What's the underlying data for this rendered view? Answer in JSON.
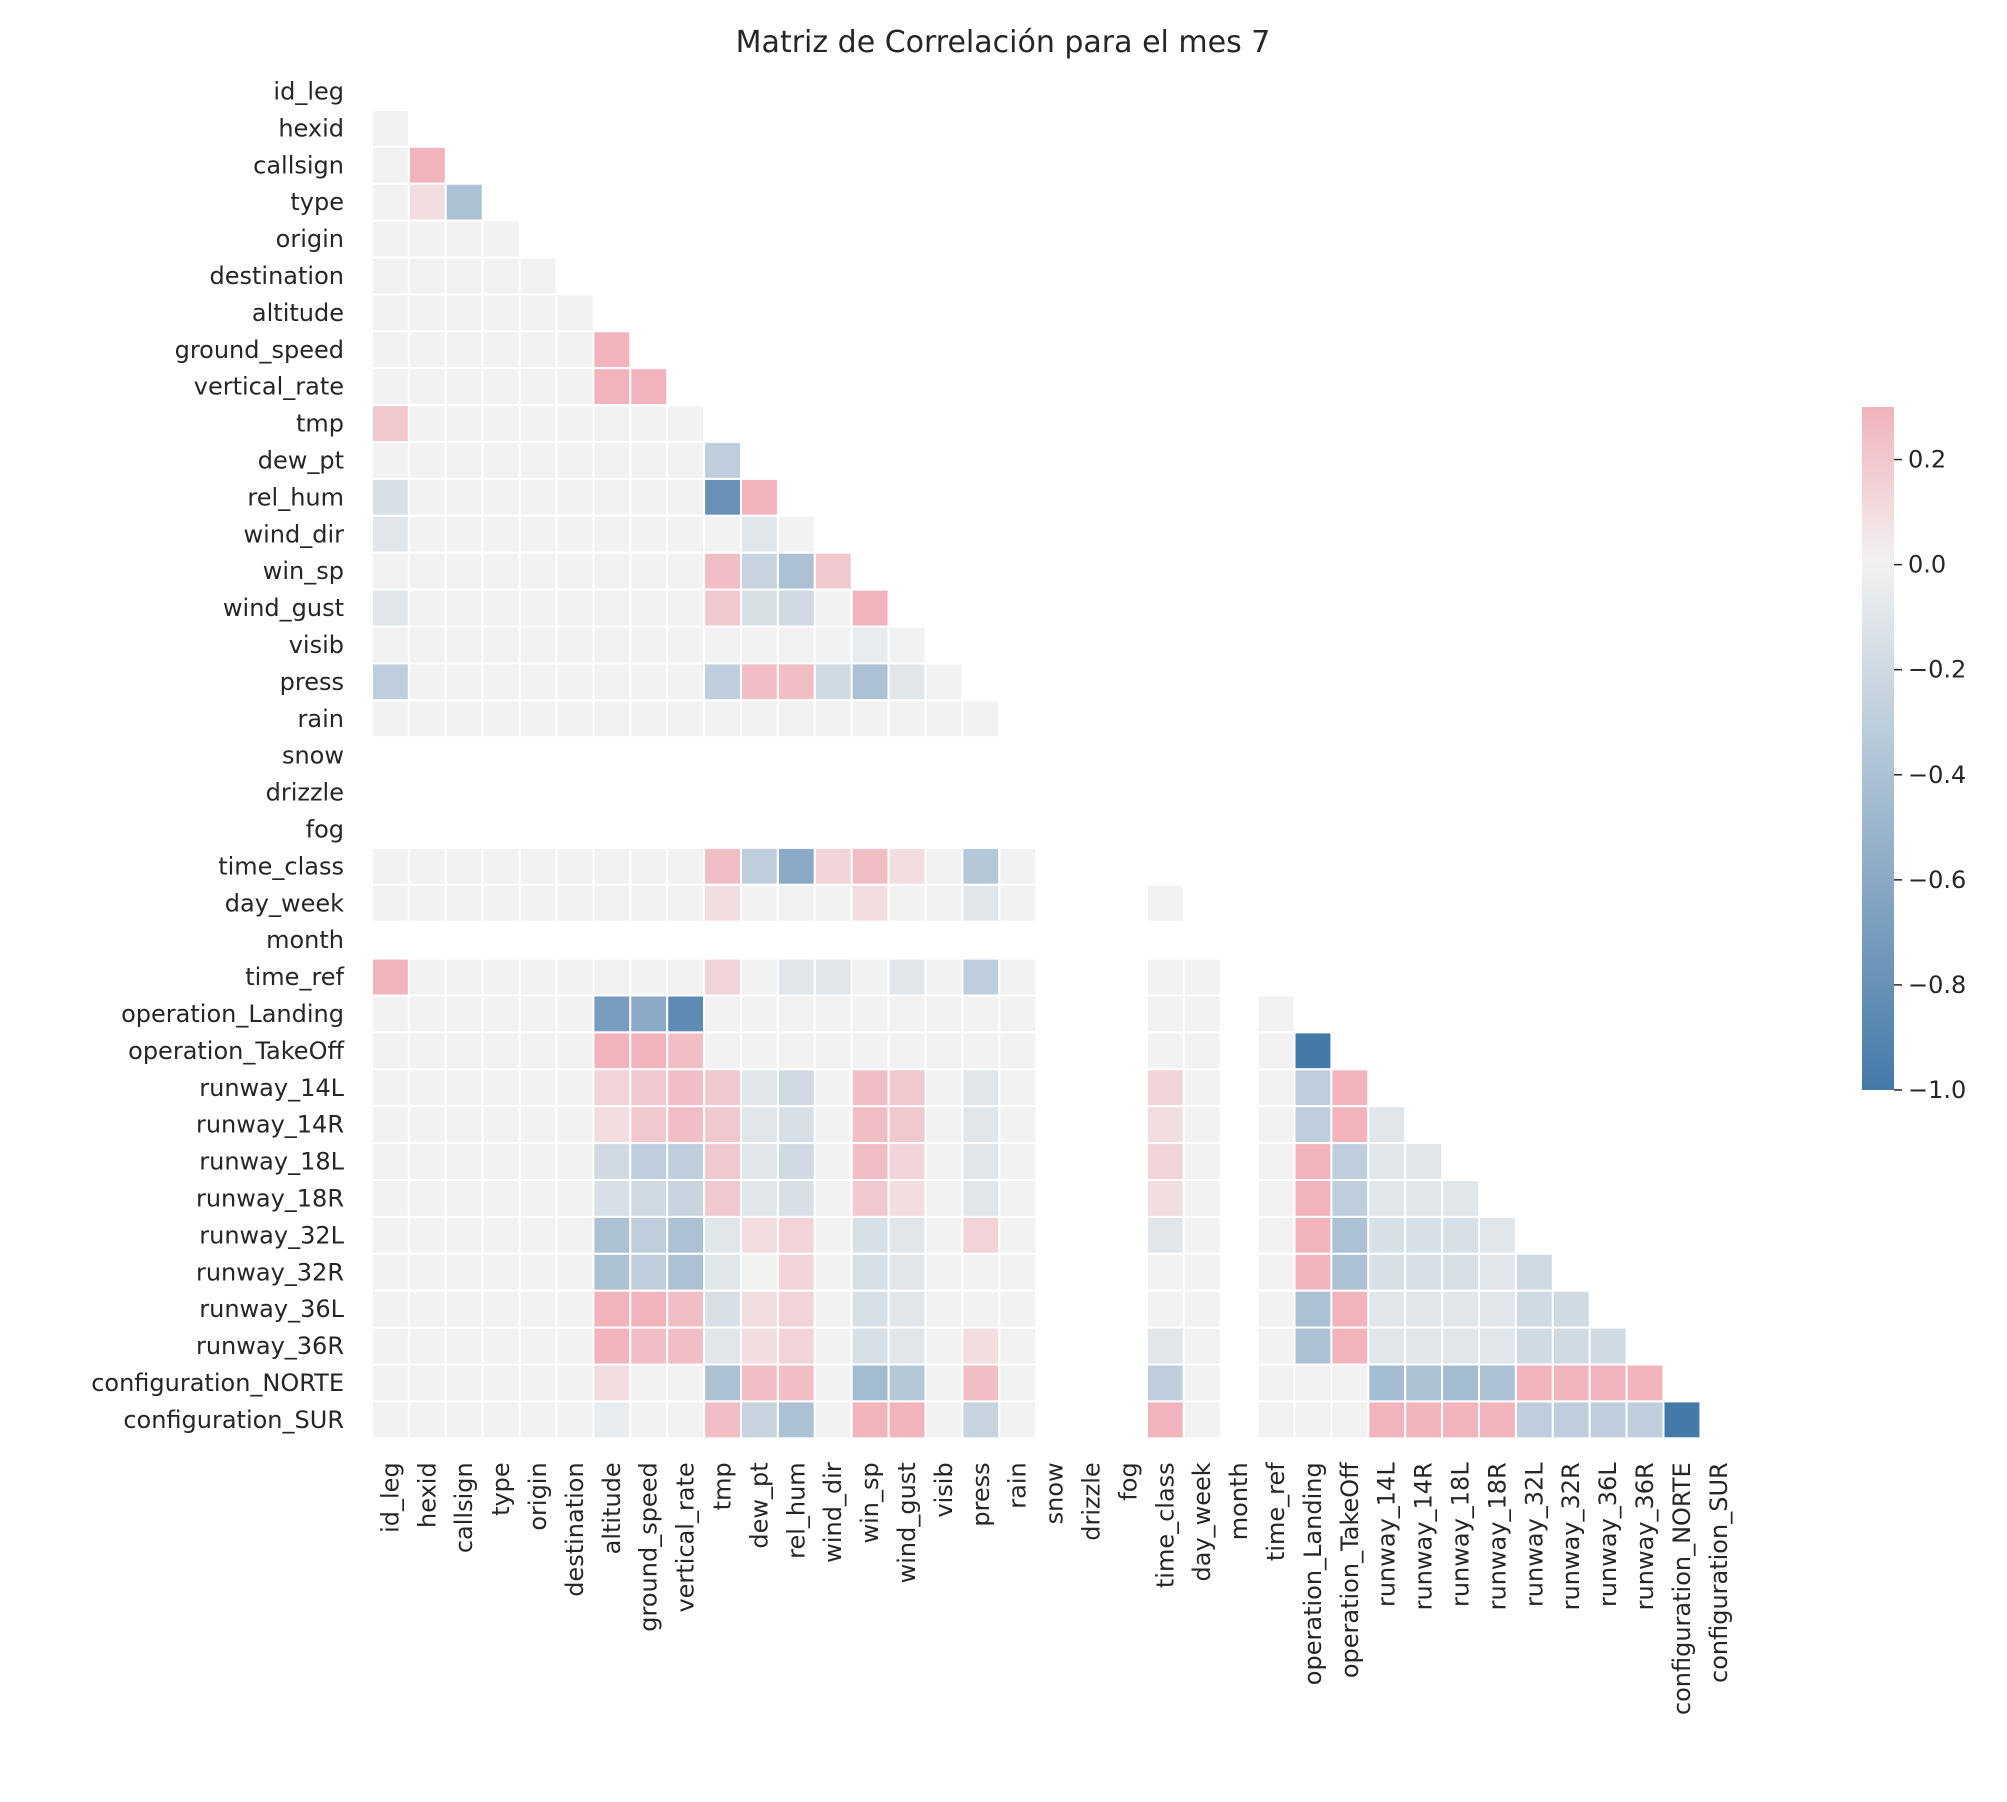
{
  "chart_data": {
    "type": "heatmap",
    "title": "Matriz de Correlación para el mes 7",
    "variables": [
      "id_leg",
      "hexid",
      "callsign",
      "type",
      "origin",
      "destination",
      "altitude",
      "ground_speed",
      "vertical_rate",
      "tmp",
      "dew_pt",
      "rel_hum",
      "wind_dir",
      "win_sp",
      "wind_gust",
      "visib",
      "press",
      "rain",
      "snow",
      "drizzle",
      "fog",
      "time_class",
      "day_week",
      "month",
      "time_ref",
      "operation_Landing",
      "operation_TakeOff",
      "runway_14L",
      "runway_14R",
      "runway_18L",
      "runway_18R",
      "runway_32L",
      "runway_32R",
      "runway_36L",
      "runway_36R",
      "configuration_NORTE",
      "configuration_SUR"
    ],
    "mask": "upper-triangle-including-diagonal",
    "nan_variables": [
      "snow",
      "drizzle",
      "fog",
      "month"
    ],
    "colorbar": {
      "vmin": -1.0,
      "vmax": 0.3,
      "ticks": [
        0.2,
        0.0,
        -0.2,
        -0.4,
        -0.6,
        -0.8,
        -1.0
      ],
      "tick_labels": [
        "0.2",
        "0.0",
        "−0.2",
        "−0.4",
        "−0.6",
        "−0.8",
        "−1.0"
      ]
    },
    "colors": {
      "negative": "#4479a8",
      "neutral": "#f2f2f2",
      "positive": "#f1b3bc"
    },
    "values": [
      [],
      [
        0
      ],
      [
        0,
        0.3
      ],
      [
        0,
        0.1,
        -0.4
      ],
      [
        0,
        0,
        0,
        0
      ],
      [
        0,
        0,
        0,
        0,
        0
      ],
      [
        0,
        0,
        0,
        0,
        0,
        0
      ],
      [
        0,
        0,
        0,
        0,
        0,
        0,
        0.3
      ],
      [
        0,
        0,
        0,
        0,
        0,
        0,
        0.3,
        0.3
      ],
      [
        0.2,
        0,
        0,
        0,
        0,
        0,
        0,
        0,
        0
      ],
      [
        0,
        0,
        0,
        0,
        0,
        0,
        0,
        0,
        0,
        -0.3
      ],
      [
        -0.15,
        0,
        0,
        0,
        0,
        0,
        0,
        0,
        0,
        -0.8,
        0.3
      ],
      [
        -0.1,
        0,
        0,
        0,
        0,
        0,
        0,
        0,
        0,
        0,
        -0.1,
        0
      ],
      [
        0,
        0,
        0,
        0,
        0,
        0,
        0,
        0,
        0,
        0.25,
        -0.25,
        -0.4,
        0.2
      ],
      [
        -0.1,
        0,
        0,
        0,
        0,
        0,
        0,
        0,
        0,
        0.2,
        -0.15,
        -0.2,
        0,
        0.3
      ],
      [
        0,
        0,
        0,
        0,
        0,
        0,
        0,
        0,
        0,
        0,
        0,
        0,
        0,
        -0.05,
        0
      ],
      [
        -0.3,
        0,
        0,
        0,
        0,
        0,
        0,
        0,
        0,
        -0.3,
        0.25,
        0.25,
        -0.2,
        -0.4,
        -0.1,
        0
      ],
      [
        0,
        0,
        0,
        0,
        0,
        0,
        0,
        0,
        0,
        0,
        0,
        0,
        0,
        0,
        0,
        0,
        0
      ],
      [
        0,
        0,
        0,
        0,
        0,
        0,
        0,
        0,
        0,
        0,
        0,
        0,
        0,
        0,
        0,
        0,
        0,
        0
      ],
      [
        0,
        0,
        0,
        0,
        0,
        0,
        0,
        0,
        0,
        0,
        0,
        0,
        0,
        0,
        0,
        0,
        0,
        0,
        0
      ],
      [
        0,
        0,
        0,
        0,
        0,
        0,
        0,
        0,
        0,
        0,
        0,
        0,
        0,
        0,
        0,
        0,
        0,
        0,
        0,
        0
      ],
      [
        0,
        0,
        0,
        0,
        0,
        0,
        0,
        0,
        0,
        0.25,
        -0.3,
        -0.6,
        0.15,
        0.25,
        0.1,
        0,
        -0.35,
        0,
        0,
        0,
        0
      ],
      [
        0,
        0,
        0,
        0,
        0,
        0,
        0,
        0,
        0,
        0.1,
        0,
        0,
        0,
        0.1,
        0,
        0,
        -0.1,
        0,
        0,
        0,
        0,
        0
      ],
      [
        0,
        0,
        0,
        0,
        0,
        0,
        0,
        0,
        0,
        0,
        0,
        0,
        0,
        0,
        0,
        0,
        0,
        0,
        0,
        0,
        0,
        0,
        0
      ],
      [
        0.3,
        0,
        0,
        0,
        0,
        0,
        0,
        0,
        0,
        0.15,
        0,
        -0.1,
        -0.1,
        0,
        -0.1,
        0,
        -0.3,
        0,
        0,
        0,
        0,
        0,
        0,
        0
      ],
      [
        0,
        0,
        0,
        0,
        0,
        0,
        -0.7,
        -0.6,
        -0.85,
        0,
        0,
        0,
        0,
        0,
        0,
        0,
        0,
        0,
        0,
        0,
        0,
        0,
        0,
        0,
        0
      ],
      [
        0,
        0,
        0,
        0,
        0,
        0,
        0.3,
        0.3,
        0.25,
        0,
        0,
        0,
        0,
        0,
        0,
        0,
        0,
        0,
        0,
        0,
        0,
        0,
        0,
        0,
        0,
        -1.0
      ],
      [
        0,
        0,
        0,
        0,
        0,
        0,
        0.15,
        0.2,
        0.25,
        0.2,
        -0.1,
        -0.2,
        0,
        0.25,
        0.2,
        0,
        -0.1,
        0,
        0,
        0,
        0,
        0.15,
        0,
        0,
        0,
        -0.3,
        0.3
      ],
      [
        0,
        0,
        0,
        0,
        0,
        0,
        0.1,
        0.2,
        0.25,
        0.2,
        -0.1,
        -0.15,
        0,
        0.25,
        0.2,
        0,
        -0.1,
        0,
        0,
        0,
        0,
        0.1,
        0,
        0,
        0,
        -0.3,
        0.3,
        -0.1
      ],
      [
        0,
        0,
        0,
        0,
        0,
        0,
        -0.2,
        -0.3,
        -0.3,
        0.2,
        -0.1,
        -0.2,
        0,
        0.25,
        0.15,
        0,
        -0.1,
        0,
        0,
        0,
        0,
        0.15,
        0,
        0,
        0,
        0.3,
        -0.3,
        -0.1,
        -0.1
      ],
      [
        0,
        0,
        0,
        0,
        0,
        0,
        -0.15,
        -0.2,
        -0.25,
        0.2,
        -0.1,
        -0.15,
        0,
        0.2,
        0.1,
        0,
        -0.1,
        0,
        0,
        0,
        0,
        0.1,
        0,
        0,
        0,
        0.3,
        -0.3,
        -0.1,
        -0.1,
        -0.1
      ],
      [
        0,
        0,
        0,
        0,
        0,
        0,
        -0.4,
        -0.3,
        -0.4,
        -0.1,
        0.1,
        0.15,
        0,
        -0.15,
        -0.1,
        0,
        0.15,
        0,
        0,
        0,
        0,
        -0.1,
        0,
        0,
        0,
        0.3,
        -0.4,
        -0.15,
        -0.15,
        -0.15,
        -0.1
      ],
      [
        0,
        0,
        0,
        0,
        0,
        0,
        -0.4,
        -0.3,
        -0.4,
        -0.1,
        0,
        0.15,
        0,
        -0.15,
        -0.1,
        0,
        0,
        0,
        0,
        0,
        0,
        0,
        0,
        0,
        0,
        0.3,
        -0.4,
        -0.15,
        -0.15,
        -0.15,
        -0.1,
        -0.2
      ],
      [
        0,
        0,
        0,
        0,
        0,
        0,
        0.3,
        0.3,
        0.25,
        -0.15,
        0.1,
        0.15,
        0,
        -0.15,
        -0.1,
        0,
        0,
        0,
        0,
        0,
        0,
        0,
        0,
        0,
        0,
        -0.4,
        0.3,
        -0.1,
        -0.1,
        -0.1,
        -0.1,
        -0.2,
        -0.2
      ],
      [
        0,
        0,
        0,
        0,
        0,
        0,
        0.3,
        0.25,
        0.25,
        -0.1,
        0.1,
        0.15,
        0,
        -0.15,
        -0.1,
        0,
        0.1,
        0,
        0,
        0,
        0,
        -0.1,
        0,
        0,
        0,
        -0.4,
        0.3,
        -0.1,
        -0.1,
        -0.1,
        -0.1,
        -0.2,
        -0.2,
        -0.2
      ],
      [
        0,
        0,
        0,
        0,
        0,
        0,
        0.1,
        0,
        0,
        -0.4,
        0.25,
        0.25,
        0,
        -0.45,
        -0.35,
        0,
        0.25,
        0,
        0,
        0,
        0,
        -0.3,
        0,
        0,
        0,
        0,
        0,
        -0.45,
        -0.4,
        -0.45,
        -0.4,
        0.3,
        0.3,
        0.3,
        0.3
      ],
      [
        0,
        0,
        0,
        0,
        0,
        0,
        -0.05,
        0,
        0,
        0.25,
        -0.25,
        -0.4,
        0,
        0.3,
        0.3,
        0,
        -0.25,
        0,
        0,
        0,
        0,
        0.3,
        0,
        0,
        0,
        0,
        0,
        0.3,
        0.3,
        0.3,
        0.3,
        -0.3,
        -0.3,
        -0.3,
        -0.3,
        -1.0
      ]
    ]
  }
}
